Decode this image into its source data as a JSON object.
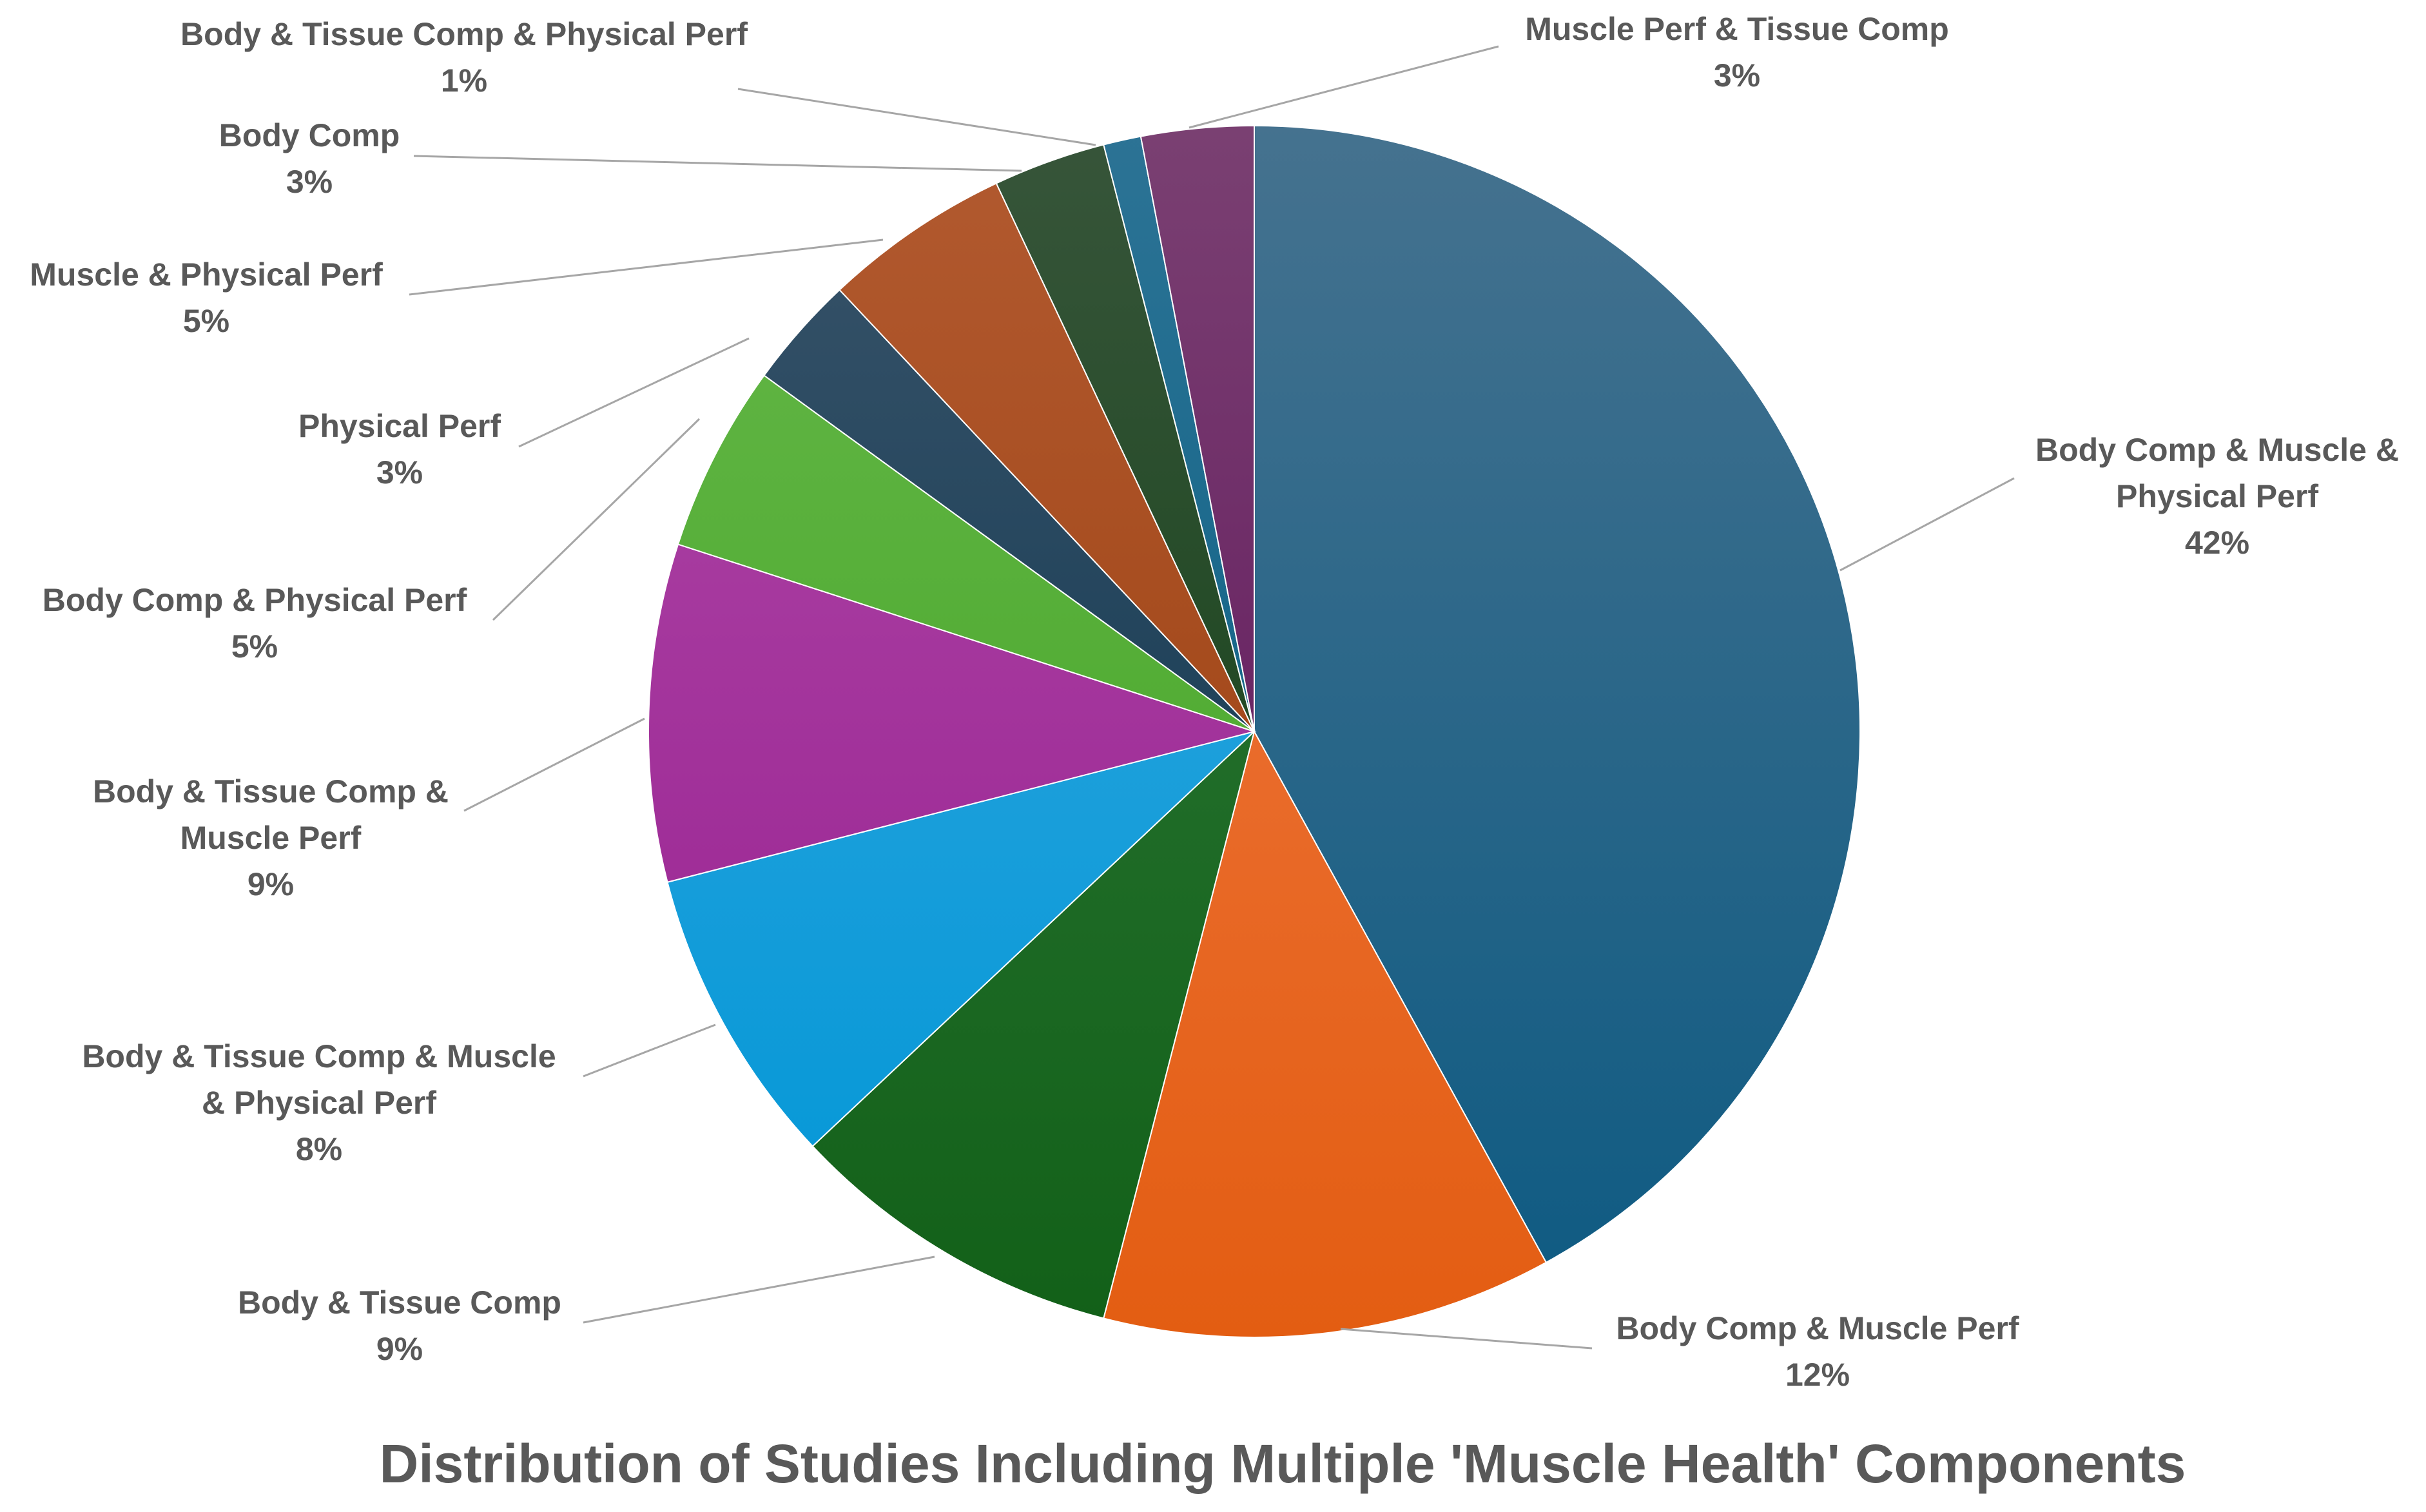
{
  "chart_data": {
    "type": "pie",
    "title": "Distribution of Studies Including Multiple 'Muscle Health' Components",
    "legend": "none",
    "slices": [
      {
        "name": "Body Comp & Muscle & Physical Perf",
        "label_lines": [
          "Body Comp & Muscle &",
          "Physical Perf"
        ],
        "value": 42,
        "pct_label": "42%",
        "color": "#0d5a82",
        "color_light": "#45728f"
      },
      {
        "name": "Body Comp & Muscle Perf",
        "label_lines": [
          "Body Comp & Muscle Perf"
        ],
        "value": 12,
        "pct_label": "12%",
        "color": "#e35d12",
        "color_light": "#f07a45"
      },
      {
        "name": "Body & Tissue Comp",
        "label_lines": [
          "Body & Tissue Comp"
        ],
        "value": 9,
        "pct_label": "9%",
        "color": "#126018",
        "color_light": "#2f7a3a"
      },
      {
        "name": "Body & Tissue Comp & Muscle & Physical Perf",
        "label_lines": [
          "Body & Tissue Comp & Muscle",
          "& Physical Perf"
        ],
        "value": 8,
        "pct_label": "8%",
        "color": "#0096d6",
        "color_light": "#39a9e0"
      },
      {
        "name": "Body & Tissue Comp & Muscle Perf",
        "label_lines": [
          "Body & Tissue Comp &",
          "Muscle Perf"
        ],
        "value": 9,
        "pct_label": "9%",
        "color": "#951c8e",
        "color_light": "#b04aa8"
      },
      {
        "name": "Body Comp & Physical Perf",
        "label_lines": [
          "Body Comp & Physical Perf"
        ],
        "value": 5,
        "pct_label": "5%",
        "color": "#3fa11f",
        "color_light": "#66b84a"
      },
      {
        "name": "Physical Perf",
        "label_lines": [
          "Physical Perf"
        ],
        "value": 3,
        "pct_label": "3%",
        "color": "#06304a",
        "color_light": "#39546a"
      },
      {
        "name": "Muscle & Physical Perf",
        "label_lines": [
          "Muscle & Physical Perf"
        ],
        "value": 5,
        "pct_label": "5%",
        "color": "#973a08",
        "color_light": "#b25a30"
      },
      {
        "name": "Body Comp",
        "label_lines": [
          "Body Comp"
        ],
        "value": 3,
        "pct_label": "3%",
        "color": "#0c3d0e",
        "color_light": "#37553a"
      },
      {
        "name": "Body & Tissue Comp & Physical Perf",
        "label_lines": [
          "Body & Tissue Comp & Physical Perf"
        ],
        "value": 1,
        "pct_label": "1%",
        "color": "#005a7e",
        "color_light": "#2c7395"
      },
      {
        "name": "Muscle Perf & Tissue Comp",
        "label_lines": [
          "Muscle Perf & Tissue Comp"
        ],
        "value": 3,
        "pct_label": "3%",
        "color": "#5a0b56",
        "color_light": "#7a4072"
      }
    ]
  }
}
